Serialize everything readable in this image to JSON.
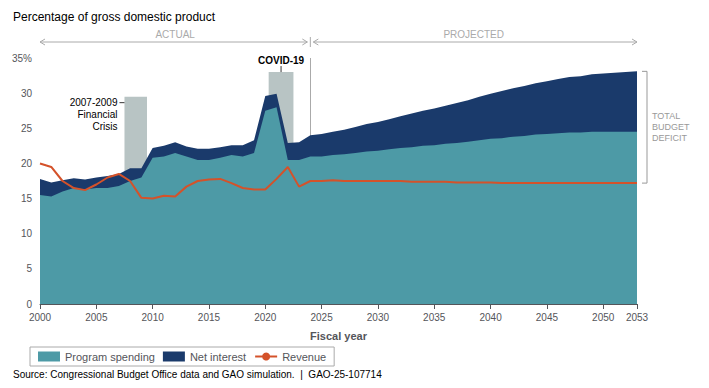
{
  "chart_data": {
    "type": "area",
    "title": "Percentage of gross domestic product",
    "xlabel": "Fiscal year",
    "source": "Source: Congressional Budget Office data and GAO simulation.  |  GAO-25-107714",
    "stacked": true,
    "x": [
      2000,
      2001,
      2002,
      2003,
      2004,
      2005,
      2006,
      2007,
      2008,
      2009,
      2010,
      2011,
      2012,
      2013,
      2014,
      2015,
      2016,
      2017,
      2018,
      2019,
      2020,
      2021,
      2022,
      2023,
      2024,
      2025,
      2026,
      2027,
      2028,
      2029,
      2030,
      2031,
      2032,
      2033,
      2034,
      2035,
      2036,
      2037,
      2038,
      2039,
      2040,
      2041,
      2042,
      2043,
      2044,
      2045,
      2046,
      2047,
      2048,
      2049,
      2050,
      2051,
      2052,
      2053
    ],
    "series": [
      {
        "name": "Program spending",
        "type": "area",
        "color": "#4d9aa6",
        "values": [
          15.5,
          15.3,
          16.0,
          16.5,
          16.3,
          16.5,
          16.5,
          16.8,
          17.5,
          18.0,
          20.8,
          21.0,
          21.5,
          21.0,
          20.5,
          20.5,
          20.8,
          21.2,
          21.0,
          21.5,
          27.5,
          28.0,
          20.5,
          20.5,
          21.0,
          21.0,
          21.2,
          21.3,
          21.5,
          21.7,
          21.8,
          22.0,
          22.2,
          22.3,
          22.5,
          22.6,
          22.8,
          22.9,
          23.1,
          23.3,
          23.5,
          23.6,
          23.8,
          23.9,
          24.1,
          24.2,
          24.3,
          24.4,
          24.4,
          24.5,
          24.5,
          24.5,
          24.5,
          24.5
        ]
      },
      {
        "name": "Net interest",
        "type": "area",
        "color": "#1a3a6b",
        "values": [
          2.3,
          2.0,
          1.6,
          1.4,
          1.4,
          1.5,
          1.7,
          1.7,
          1.8,
          1.3,
          1.4,
          1.5,
          1.5,
          1.4,
          1.6,
          1.6,
          1.5,
          1.4,
          1.6,
          1.8,
          2.1,
          1.9,
          2.4,
          2.5,
          3.0,
          3.2,
          3.3,
          3.5,
          3.7,
          3.9,
          4.1,
          4.3,
          4.5,
          4.8,
          5.0,
          5.2,
          5.4,
          5.7,
          5.9,
          6.2,
          6.4,
          6.7,
          6.9,
          7.1,
          7.3,
          7.5,
          7.7,
          7.9,
          8.0,
          8.2,
          8.3,
          8.4,
          8.5,
          8.6
        ]
      },
      {
        "name": "Revenue",
        "type": "line",
        "color": "#d4522a",
        "values": [
          20.0,
          19.5,
          17.5,
          16.5,
          16.2,
          17.0,
          18.0,
          18.5,
          17.5,
          15.1,
          15.0,
          15.4,
          15.3,
          16.7,
          17.5,
          17.7,
          17.8,
          17.2,
          16.5,
          16.3,
          16.3,
          17.8,
          19.5,
          16.7,
          17.5,
          17.5,
          17.6,
          17.5,
          17.5,
          17.5,
          17.5,
          17.5,
          17.5,
          17.4,
          17.4,
          17.4,
          17.4,
          17.3,
          17.3,
          17.3,
          17.3,
          17.2,
          17.2,
          17.2,
          17.2,
          17.2,
          17.2,
          17.2,
          17.2,
          17.2,
          17.2,
          17.2,
          17.2,
          17.2
        ]
      }
    ],
    "xlim": [
      2000,
      2053
    ],
    "xticks": [
      2000,
      2005,
      2010,
      2015,
      2020,
      2025,
      2030,
      2035,
      2040,
      2045,
      2050,
      2053
    ],
    "ylim": [
      0,
      35
    ],
    "yticks": [
      0,
      5,
      10,
      15,
      20,
      25,
      30,
      {
        "value": 35,
        "label": "35%"
      }
    ],
    "grid": false,
    "legend": "bottom",
    "shaded_regions": [
      {
        "label": "2007-2009\nFinancial\nCrisis",
        "x_start": 2007.5,
        "x_end": 2009.5,
        "y_top": 29.5,
        "color": "#b8c4c4"
      },
      {
        "label": "COVID-19",
        "x_start": 2020.3,
        "x_end": 2022.5,
        "y_top": 33.0,
        "color": "#b8c4c4"
      }
    ],
    "projection": {
      "x": 2024,
      "labels": [
        "ACTUAL",
        "PROJECTED"
      ],
      "color": "#aaaaaa"
    },
    "bracket": {
      "label": "TOTAL\nBUDGET\nDEFICIT",
      "color": "#999999"
    }
  }
}
